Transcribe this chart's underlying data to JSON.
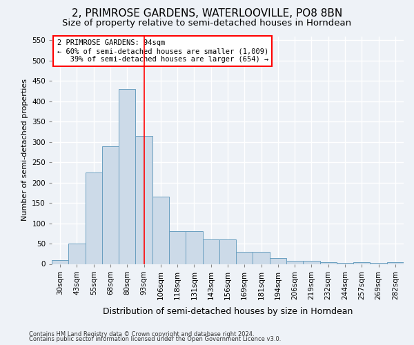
{
  "title": "2, PRIMROSE GARDENS, WATERLOOVILLE, PO8 8BN",
  "subtitle": "Size of property relative to semi-detached houses in Horndean",
  "xlabel": "Distribution of semi-detached houses by size in Horndean",
  "ylabel": "Number of semi-detached properties",
  "footnote1": "Contains HM Land Registry data © Crown copyright and database right 2024.",
  "footnote2": "Contains public sector information licensed under the Open Government Licence v3.0.",
  "bar_labels": [
    "30sqm",
    "43sqm",
    "55sqm",
    "68sqm",
    "80sqm",
    "93sqm",
    "106sqm",
    "118sqm",
    "131sqm",
    "143sqm",
    "156sqm",
    "169sqm",
    "181sqm",
    "194sqm",
    "206sqm",
    "219sqm",
    "232sqm",
    "244sqm",
    "257sqm",
    "269sqm",
    "282sqm"
  ],
  "bar_values": [
    10,
    50,
    225,
    290,
    430,
    315,
    165,
    80,
    80,
    60,
    60,
    30,
    30,
    15,
    8,
    8,
    5,
    2,
    5,
    2,
    5
  ],
  "bar_color": "#ccdae8",
  "bar_edge_color": "#6a9fc0",
  "vline_x": 5.0,
  "vline_color": "red",
  "annotation_text": "2 PRIMROSE GARDENS: 94sqm\n← 60% of semi-detached houses are smaller (1,009)\n   39% of semi-detached houses are larger (654) →",
  "annotation_box_color": "red",
  "ylim": [
    0,
    560
  ],
  "yticks": [
    0,
    50,
    100,
    150,
    200,
    250,
    300,
    350,
    400,
    450,
    500,
    550
  ],
  "background_color": "#eef2f7",
  "grid_color": "#ffffff",
  "title_fontsize": 11,
  "subtitle_fontsize": 9.5,
  "xlabel_fontsize": 9,
  "ylabel_fontsize": 8,
  "tick_fontsize": 7.5,
  "annotation_fontsize": 7.5,
  "footnote_fontsize": 6
}
